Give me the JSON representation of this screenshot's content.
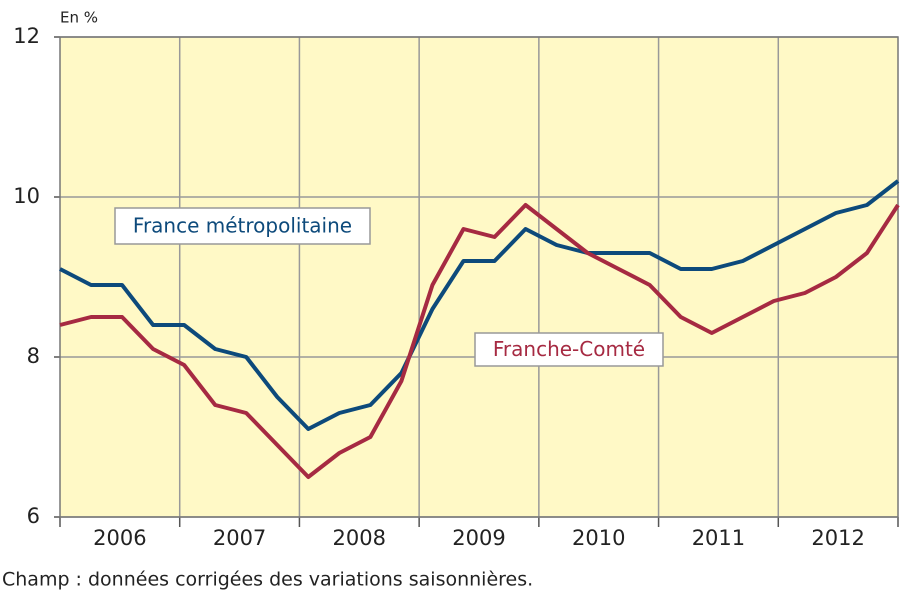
{
  "chart_data": {
    "type": "line",
    "y_label": "En %",
    "categories": [
      "2006",
      null,
      null,
      null,
      "2007",
      null,
      null,
      null,
      "2008",
      null,
      null,
      null,
      "2009",
      null,
      null,
      null,
      "2010",
      null,
      null,
      null,
      "2011",
      null,
      null,
      null,
      "2012",
      null,
      null,
      null
    ],
    "series": [
      {
        "name": "France métropolitaine",
        "color": "#0d4a7b",
        "values": [
          9.1,
          8.9,
          8.9,
          8.4,
          8.4,
          8.1,
          8.0,
          7.5,
          7.1,
          7.3,
          7.4,
          7.8,
          8.6,
          9.2,
          9.2,
          9.6,
          9.4,
          9.3,
          9.3,
          9.3,
          9.1,
          9.1,
          9.2,
          9.4,
          9.6,
          9.8,
          9.9,
          10.2
        ]
      },
      {
        "name": "Franche-Comté",
        "color": "#a62a42",
        "values": [
          8.4,
          8.5,
          8.5,
          8.1,
          7.9,
          7.4,
          7.3,
          6.9,
          6.5,
          6.8,
          7.0,
          7.7,
          8.9,
          9.6,
          9.5,
          9.9,
          9.6,
          9.3,
          9.1,
          8.9,
          8.5,
          8.3,
          8.5,
          8.7,
          8.8,
          9.0,
          9.3,
          9.9
        ]
      }
    ],
    "ylim": [
      6,
      12
    ],
    "yticks": [
      6,
      8,
      10,
      12
    ],
    "grid": true,
    "background": "#fff9c6",
    "note": "Champ : données corrigées des variations saisonnières."
  }
}
